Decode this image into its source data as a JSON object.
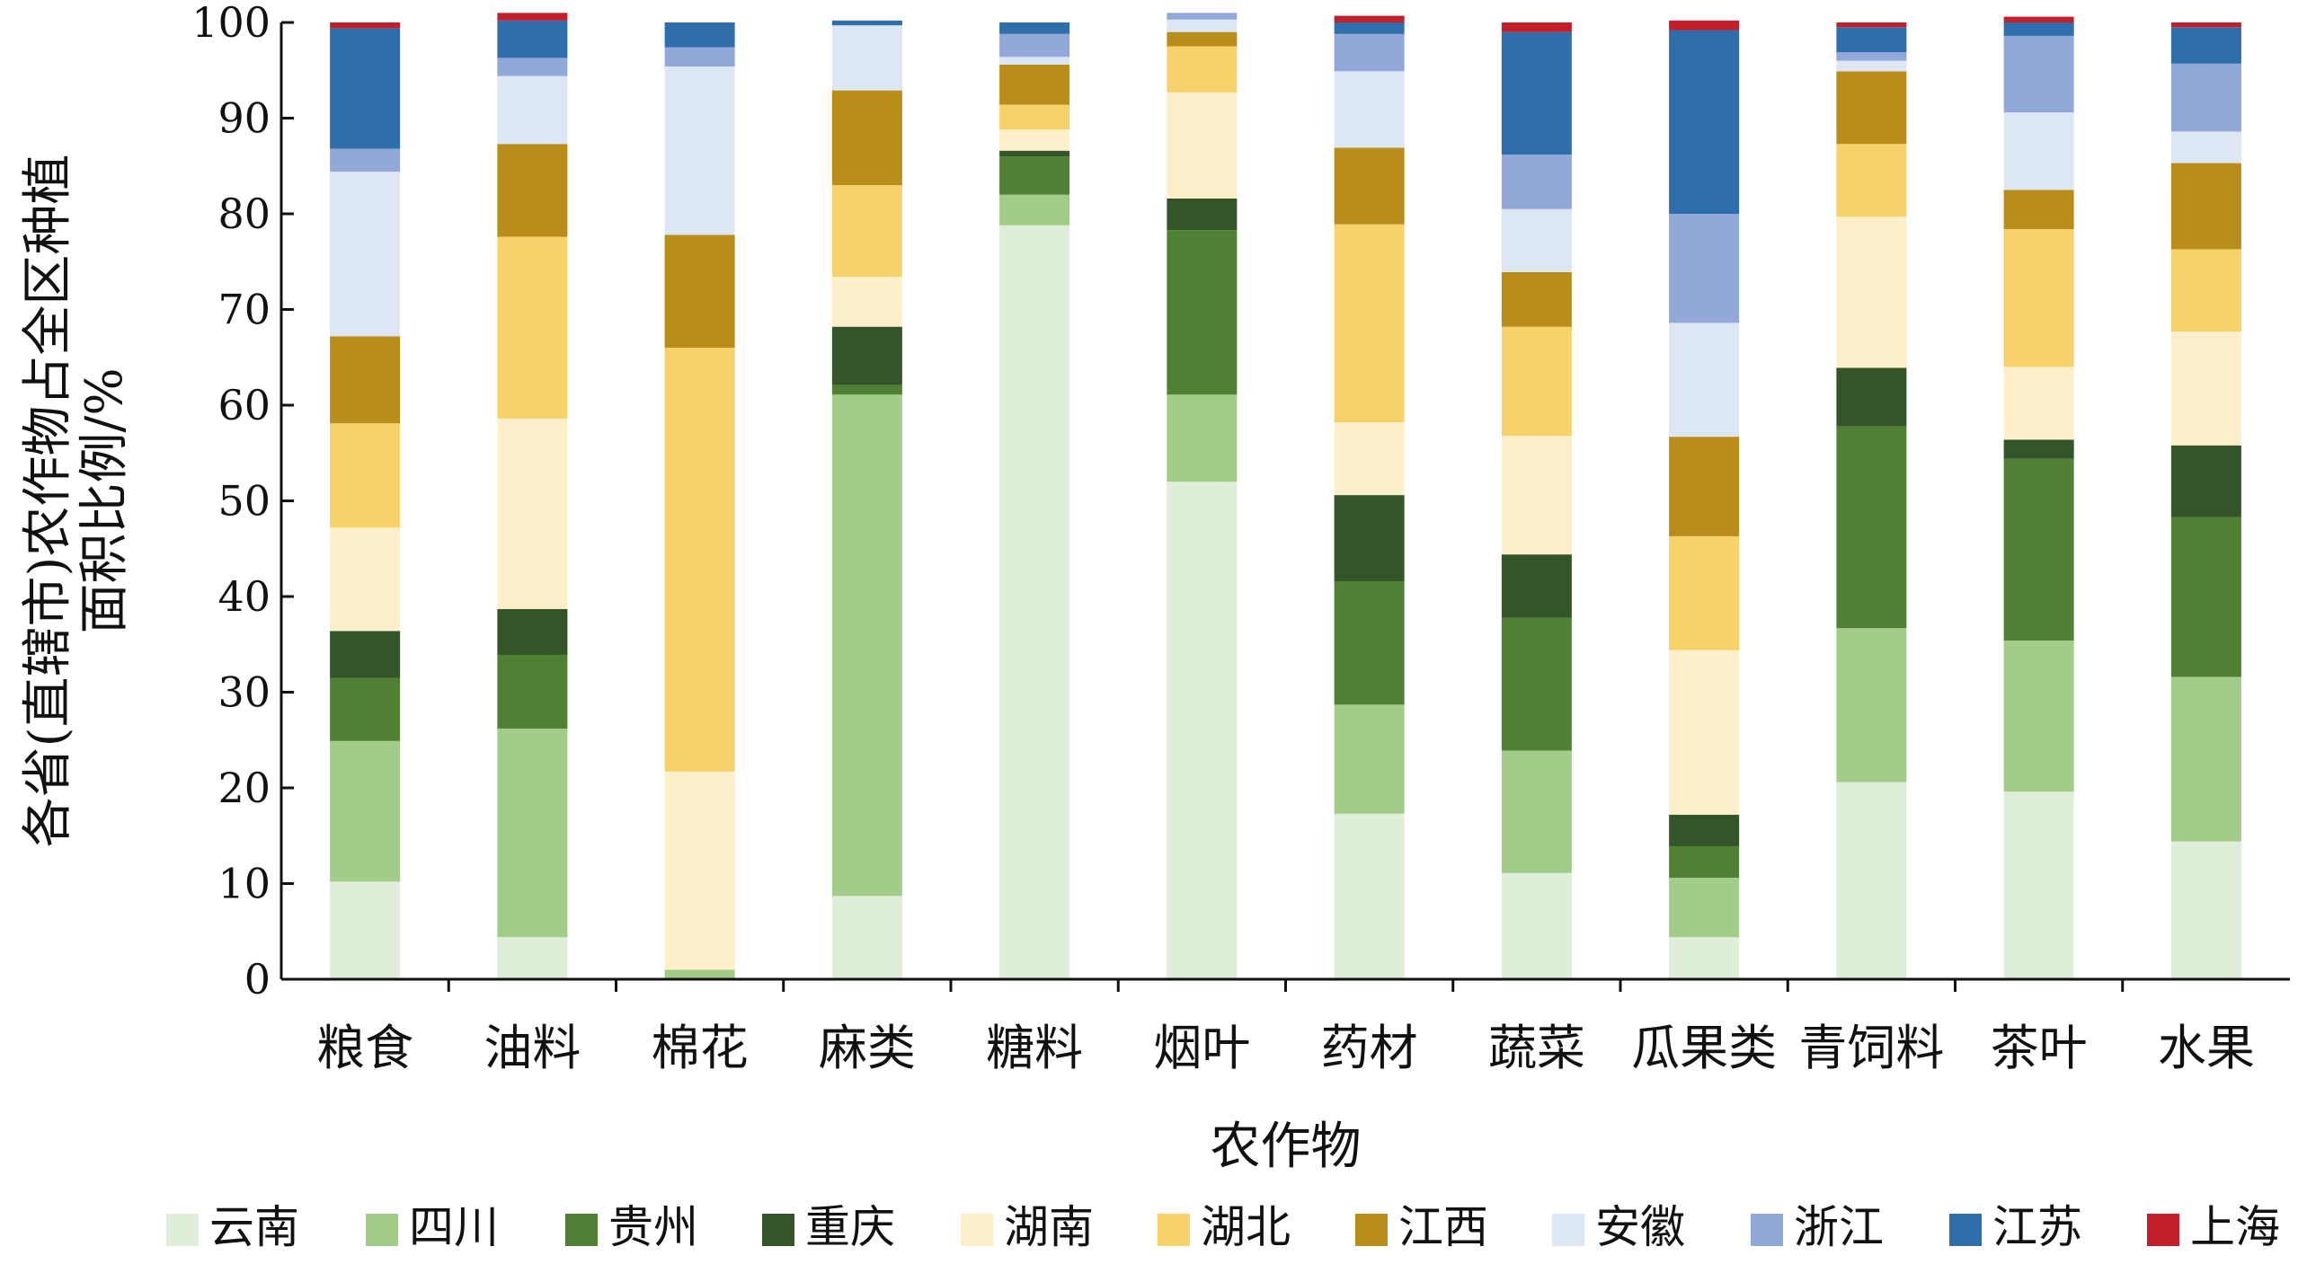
{
  "chart_data": {
    "type": "bar",
    "stacked": true,
    "xlabel": "农作物",
    "ylabel": [
      "各省(直辖市)农作物占全区种植",
      "面积比例/%"
    ],
    "ylim": [
      0,
      100
    ],
    "yticks": [
      "0",
      "10",
      "20",
      "30",
      "40",
      "50",
      "60",
      "70",
      "80",
      "90",
      "100"
    ],
    "grid": false,
    "legend_position": "bottom",
    "categories": [
      "粮食",
      "油料",
      "棉花",
      "麻类",
      "糖料",
      "烟叶",
      "药材",
      "蔬菜",
      "瓜果类",
      "青饲料",
      "茶叶",
      "水果"
    ],
    "series": [
      {
        "name": "云南",
        "color": "#dfeed8",
        "values": [
          10.2,
          4.4,
          0.0,
          8.7,
          78.8,
          52.0,
          17.3,
          11.1,
          4.4,
          20.6,
          19.6,
          14.4
        ]
      },
      {
        "name": "四川",
        "color": "#a3cb8a",
        "values": [
          14.7,
          21.8,
          1.0,
          52.4,
          3.2,
          9.1,
          11.4,
          12.8,
          6.2,
          16.1,
          15.8,
          17.2
        ]
      },
      {
        "name": "贵州",
        "color": "#508034",
        "values": [
          6.6,
          7.7,
          0.0,
          1.0,
          4.0,
          17.2,
          12.9,
          13.9,
          3.3,
          21.1,
          19.0,
          16.7
        ]
      },
      {
        "name": "重庆",
        "color": "#34542a",
        "values": [
          4.9,
          4.8,
          0.0,
          6.1,
          0.6,
          3.3,
          9.0,
          6.6,
          3.3,
          6.1,
          2.0,
          7.5
        ]
      },
      {
        "name": "湖南",
        "color": "#fdefc9",
        "values": [
          10.8,
          19.9,
          20.7,
          5.2,
          2.2,
          11.1,
          7.6,
          12.4,
          17.2,
          15.8,
          7.6,
          11.9
        ]
      },
      {
        "name": "湖北",
        "color": "#f7d26a",
        "values": [
          10.9,
          19.0,
          44.3,
          9.6,
          2.6,
          4.8,
          20.7,
          11.4,
          11.9,
          7.6,
          14.4,
          8.6
        ]
      },
      {
        "name": "江西",
        "color": "#b98d1a",
        "values": [
          9.1,
          9.7,
          11.8,
          9.9,
          4.2,
          1.5,
          8.0,
          5.7,
          10.4,
          7.6,
          4.1,
          9.0
        ]
      },
      {
        "name": "安徽",
        "color": "#dce7f3",
        "values": [
          17.2,
          7.1,
          17.6,
          6.8,
          0.8,
          1.3,
          8.0,
          6.6,
          11.9,
          1.1,
          8.1,
          3.3
        ]
      },
      {
        "name": "浙江",
        "color": "#91a8d8",
        "values": [
          2.4,
          1.9,
          2.0,
          0.0,
          2.4,
          0.7,
          3.9,
          5.7,
          11.4,
          0.9,
          8.0,
          7.1
        ]
      },
      {
        "name": "江苏",
        "color": "#2f6eab",
        "values": [
          12.6,
          3.9,
          2.6,
          0.5,
          1.2,
          0.0,
          1.2,
          12.8,
          19.2,
          2.6,
          1.4,
          3.8
        ]
      },
      {
        "name": "上海",
        "color": "#c21f2a",
        "values": [
          0.6,
          0.8,
          0.0,
          0.0,
          0.0,
          0.0,
          0.7,
          1.0,
          1.0,
          0.5,
          0.6,
          0.5
        ]
      }
    ]
  }
}
